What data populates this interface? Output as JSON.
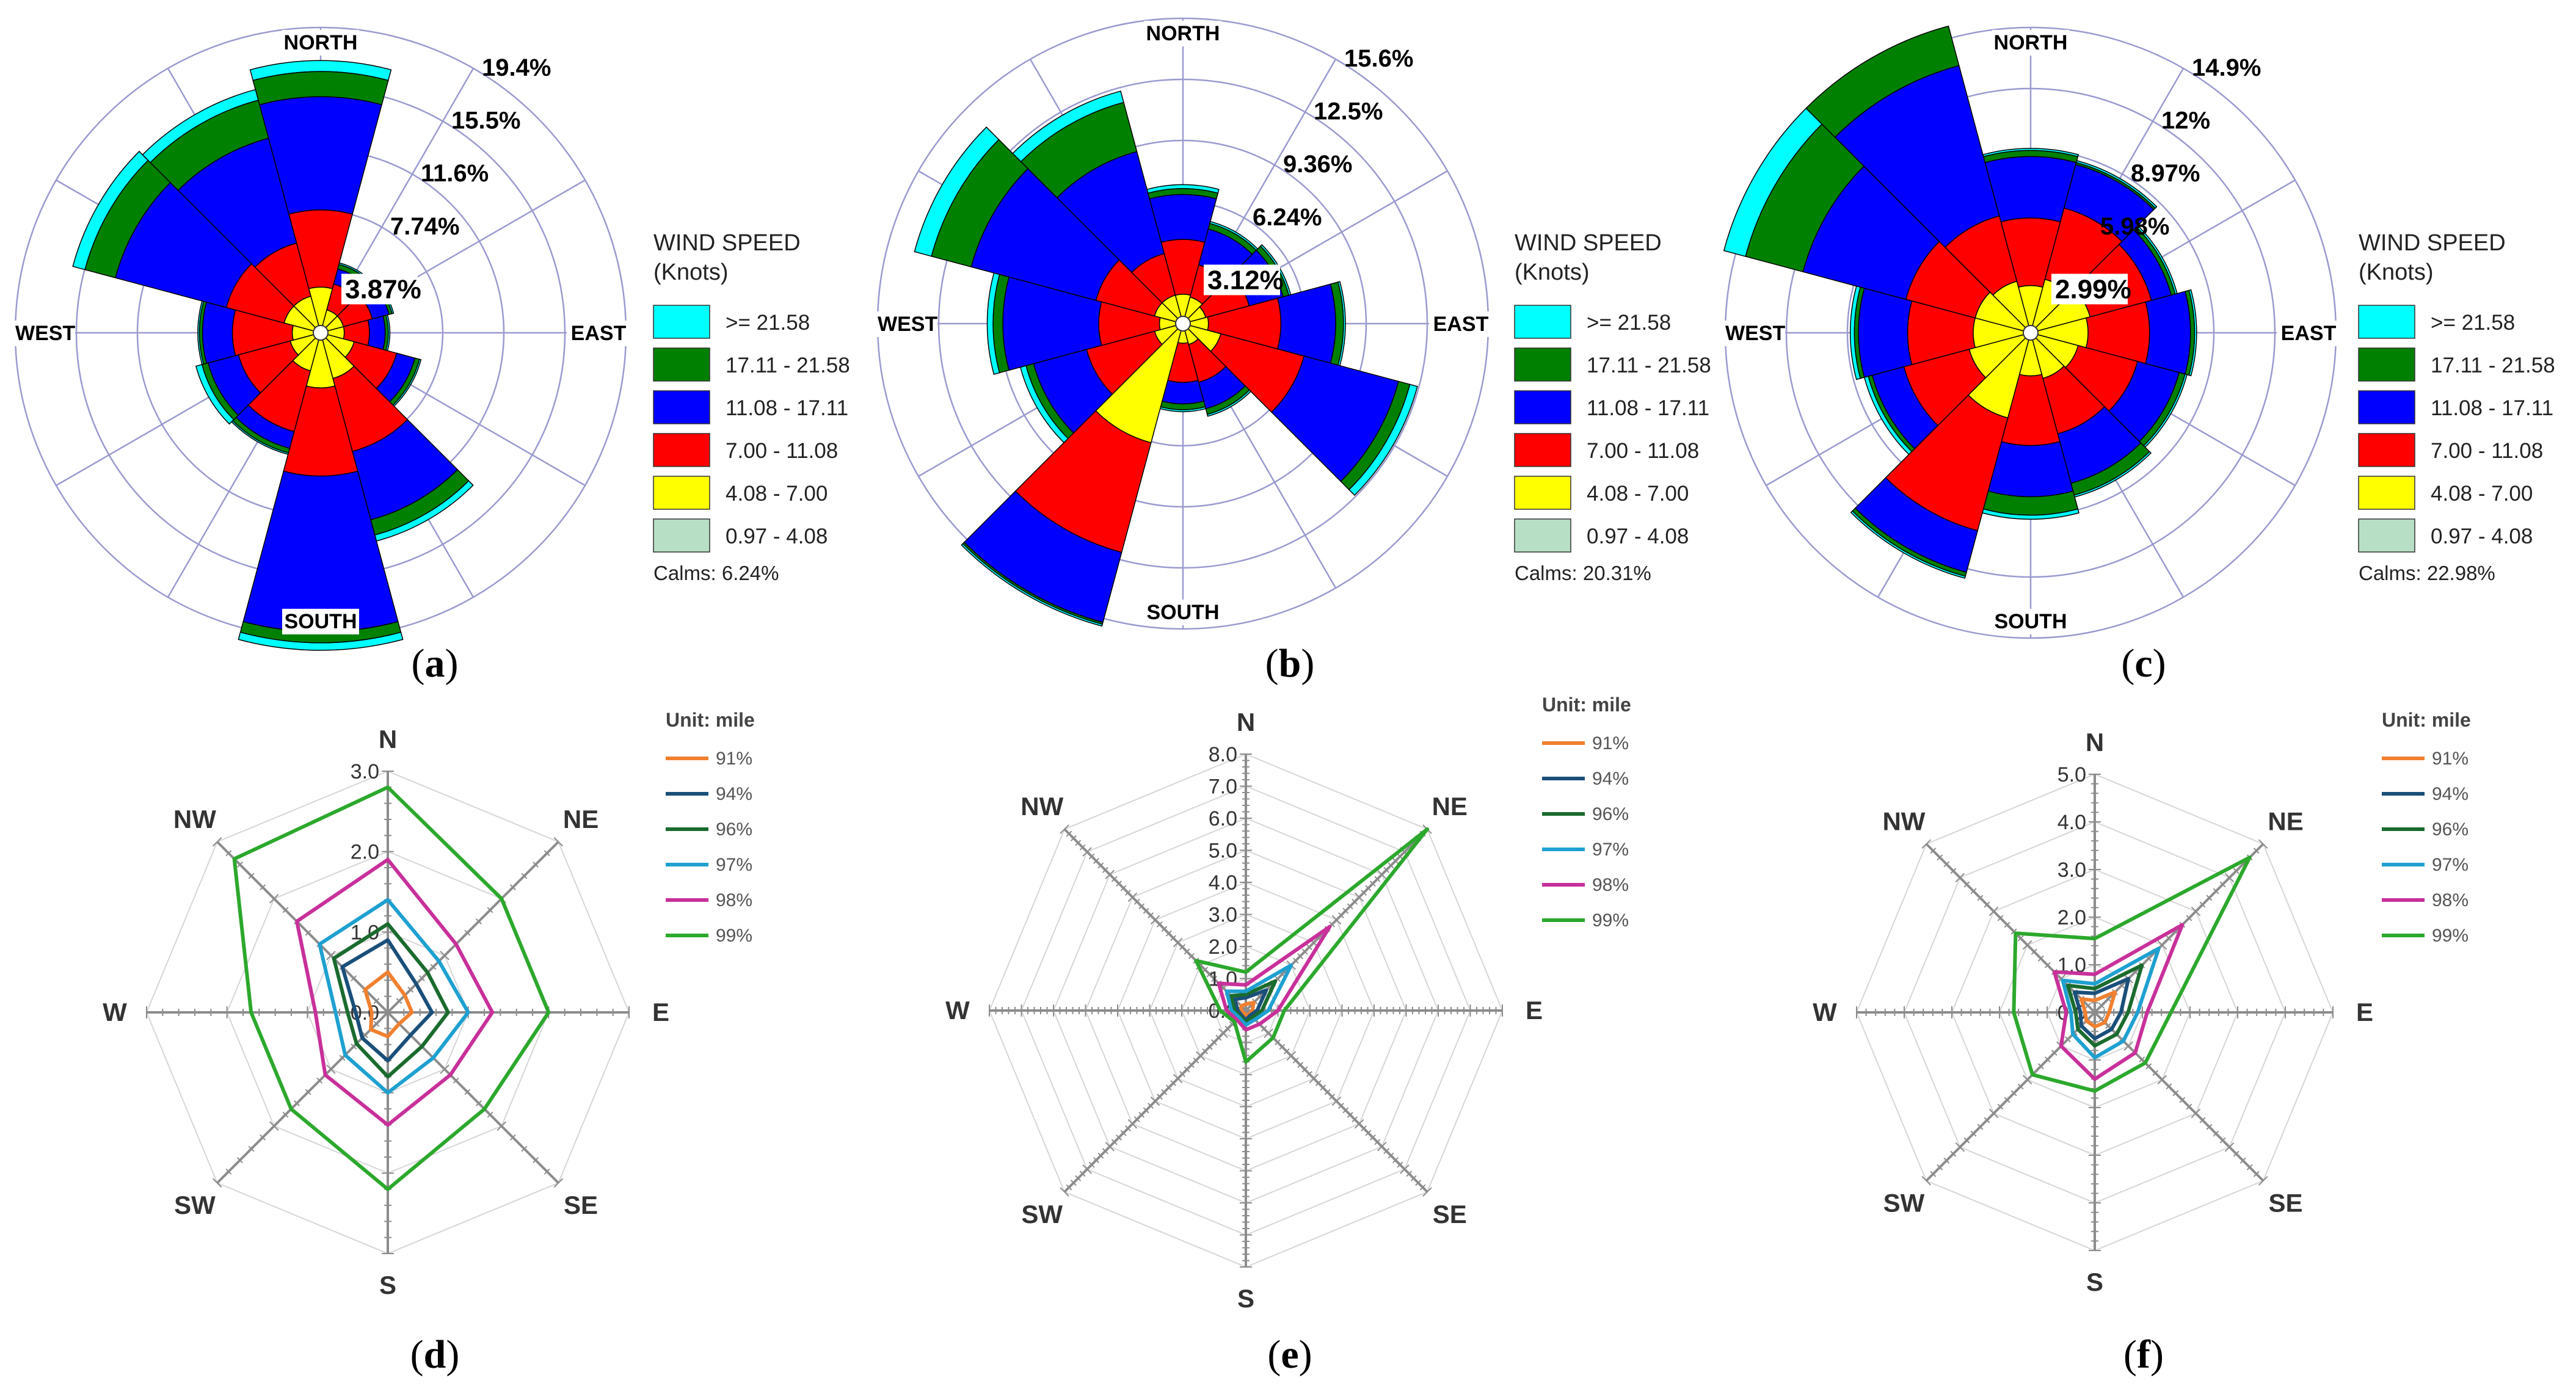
{
  "chart_data": [
    {
      "panel": "(a)",
      "type": "windrose",
      "directions": [
        "NORTH",
        "EAST",
        "SOUTH",
        "WEST"
      ],
      "ring_labels": [
        "3.87%",
        "7.74%",
        "11.6%",
        "15.5%",
        "19.4%"
      ],
      "rmax": 19.4,
      "legend_title": [
        "WIND SPEED",
        "(Knots)"
      ],
      "bins": [
        "0.97 - 4.08",
        "4.08 - 7.00",
        "7.00 - 11.08",
        "11.08 - 17.11",
        "17.11 - 21.58",
        ">= 21.58"
      ],
      "colors": [
        "#b7dfc6",
        "#ffff00",
        "#ff0000",
        "#0000ff",
        "#008000",
        "#00ffff"
      ],
      "legend_labels": [
        ">= 21.58",
        "17.11 - 21.58",
        "11.08 - 17.11",
        "7.00 - 11.08",
        "4.08 - 7.00",
        "0.97 - 4.08"
      ],
      "legend_colors": [
        "#00ffff",
        "#008000",
        "#0000ff",
        "#ff0000",
        "#ffff00",
        "#b7dfc6"
      ],
      "calms": "Calms: 6.24%",
      "sectors": [
        [
          0.1,
          2.9,
          7.8,
          15.0,
          16.6,
          17.3
        ],
        [
          0.1,
          1.5,
          3.2,
          4.2,
          4.5,
          4.6
        ],
        [
          0.1,
          1.5,
          3.4,
          4.5,
          4.7,
          4.8
        ],
        [
          0.1,
          1.5,
          3.1,
          4.1,
          4.3,
          4.4
        ],
        [
          0.1,
          2.2,
          5.0,
          6.2,
          6.5,
          6.6
        ],
        [
          0.1,
          3.0,
          7.8,
          12.3,
          13.3,
          13.7
        ],
        [
          0.1,
          3.5,
          9.1,
          19.0,
          19.7,
          20.3
        ],
        [
          0.1,
          2.5,
          6.5,
          7.6,
          7.9,
          8.0
        ],
        [
          0.1,
          2.0,
          5.4,
          7.4,
          7.8,
          8.2
        ],
        [
          0.1,
          1.8,
          5.6,
          7.5,
          7.7,
          7.8
        ],
        [
          0.1,
          2.4,
          6.2,
          13.5,
          15.5,
          16.3
        ],
        [
          0.1,
          2.4,
          5.9,
          12.8,
          15.3,
          16.0
        ]
      ]
    },
    {
      "panel": "(b)",
      "type": "windrose",
      "directions": [
        "NORTH",
        "EAST",
        "SOUTH",
        "WEST"
      ],
      "ring_labels": [
        "3.12%",
        "6.24%",
        "9.36%",
        "12.5%",
        "15.6%"
      ],
      "rmax": 15.6,
      "legend_title": [
        "WIND SPEED",
        "(Knots)"
      ],
      "bins": [
        "0.97 - 4.08",
        "4.08 - 7.00",
        "7.00 - 11.08",
        "11.08 - 17.11",
        "17.11 - 21.58",
        ">= 21.58"
      ],
      "colors": [
        "#b7dfc6",
        "#ffff00",
        "#ff0000",
        "#0000ff",
        "#008000",
        "#00ffff"
      ],
      "legend_labels": [
        ">= 21.58",
        "17.11 - 21.58",
        "11.08 - 17.11",
        "7.00 - 11.08",
        "4.08 - 7.00",
        "0.97 - 4.08"
      ],
      "legend_colors": [
        "#00ffff",
        "#008000",
        "#0000ff",
        "#ff0000",
        "#ffff00",
        "#b7dfc6"
      ],
      "calms": "Calms: 20.31%",
      "sectors": [
        [
          0.3,
          1.5,
          4.3,
          6.6,
          6.9,
          7.1
        ],
        [
          0.3,
          1.4,
          3.1,
          5.0,
          5.3,
          5.4
        ],
        [
          0.3,
          1.2,
          3.5,
          5.3,
          5.6,
          5.7
        ],
        [
          0.3,
          1.3,
          5.0,
          7.8,
          8.2,
          8.3
        ],
        [
          0.3,
          2.0,
          6.4,
          11.4,
          12.0,
          12.4
        ],
        [
          0.3,
          1.1,
          3.1,
          4.5,
          4.8,
          4.9
        ],
        [
          0.3,
          1.0,
          3.0,
          4.1,
          4.4,
          4.5
        ],
        [
          0.3,
          6.3,
          12.1,
          15.8,
          15.9,
          16.0
        ],
        [
          0.3,
          1.5,
          5.1,
          7.9,
          8.3,
          8.6
        ],
        [
          0.3,
          1.2,
          4.3,
          9.2,
          9.7,
          10.0
        ],
        [
          0.3,
          1.5,
          4.6,
          11.2,
          13.3,
          14.2
        ],
        [
          0.3,
          1.5,
          3.7,
          9.1,
          11.7,
          12.3
        ]
      ]
    },
    {
      "panel": "(c)",
      "type": "windrose",
      "directions": [
        "NORTH",
        "EAST",
        "SOUTH",
        "WEST"
      ],
      "ring_labels": [
        "2.99%",
        "5.98%",
        "8.97%",
        "12%",
        "14.9%"
      ],
      "rmax": 14.9,
      "legend_title": [
        "WIND SPEED",
        "(Knots)"
      ],
      "bins": [
        "0.97 - 4.08",
        "4.08 - 7.00",
        "7.00 - 11.08",
        "11.08 - 17.11",
        "17.11 - 21.58",
        ">= 21.58"
      ],
      "colors": [
        "#b7dfc6",
        "#ffff00",
        "#ff0000",
        "#0000ff",
        "#008000",
        "#00ffff"
      ],
      "legend_labels": [
        ">= 21.58",
        "17.11 - 21.58",
        "11.08 - 17.11",
        "7.00 - 11.08",
        "4.08 - 7.00",
        "0.97 - 4.08"
      ],
      "legend_colors": [
        "#00ffff",
        "#008000",
        "#0000ff",
        "#ff0000",
        "#ffff00",
        "#b7dfc6"
      ],
      "calms": "Calms: 22.98%",
      "sectors": [
        [
          0.3,
          2.3,
          5.6,
          8.6,
          8.9,
          9.0
        ],
        [
          0.3,
          2.7,
          6.3,
          8.5,
          8.6,
          8.7
        ],
        [
          0.3,
          3.0,
          6.1,
          7.1,
          7.3,
          7.4
        ],
        [
          0.3,
          2.8,
          5.8,
          7.8,
          8.0,
          8.1
        ],
        [
          0.3,
          2.4,
          5.4,
          7.5,
          7.8,
          7.9
        ],
        [
          0.3,
          2.3,
          5.1,
          7.6,
          8.2,
          8.3
        ],
        [
          0.3,
          2.1,
          5.5,
          8.0,
          8.9,
          9.1
        ],
        [
          0.3,
          4.3,
          10.0,
          12.1,
          12.3,
          12.4
        ],
        [
          0.3,
          3.1,
          6.4,
          8.0,
          8.2,
          8.4
        ],
        [
          0.3,
          2.8,
          6.0,
          8.4,
          8.6,
          8.8
        ],
        [
          0.3,
          2.8,
          6.3,
          11.5,
          14.4,
          16.4
        ],
        [
          0.3,
          2.6,
          5.9,
          13.5,
          15.5,
          16.3
        ]
      ]
    },
    {
      "panel": "(d)",
      "type": "radar",
      "axes": [
        "N",
        "NE",
        "E",
        "SE",
        "S",
        "SW",
        "W",
        "NW"
      ],
      "rmax": 3.0,
      "ticks": [
        "0.0",
        "1.0",
        "2.0",
        "3.0"
      ],
      "legend_title": "Unit: mile",
      "series": [
        {
          "name": "91%",
          "color": "#f08030",
          "values": [
            0.5,
            0.3,
            0.3,
            0.2,
            0.3,
            0.3,
            0.2,
            0.4
          ]
        },
        {
          "name": "94%",
          "color": "#1a4f7a",
          "values": [
            0.9,
            0.5,
            0.55,
            0.4,
            0.6,
            0.45,
            0.4,
            0.8
          ]
        },
        {
          "name": "96%",
          "color": "#1a6b2e",
          "values": [
            1.1,
            0.7,
            0.75,
            0.6,
            0.8,
            0.55,
            0.5,
            0.95
          ]
        },
        {
          "name": "97%",
          "color": "#1ea0d0",
          "values": [
            1.4,
            0.9,
            1.0,
            0.8,
            1.0,
            0.75,
            0.65,
            1.2
          ]
        },
        {
          "name": "98%",
          "color": "#c8309a",
          "values": [
            1.9,
            1.2,
            1.3,
            1.1,
            1.4,
            1.1,
            0.9,
            1.6
          ]
        },
        {
          "name": "99%",
          "color": "#2ca82c",
          "values": [
            2.8,
            2.0,
            2.0,
            1.7,
            2.2,
            1.7,
            1.7,
            2.7
          ]
        }
      ]
    },
    {
      "panel": "(e)",
      "type": "radar",
      "axes": [
        "N",
        "NE",
        "E",
        "SE",
        "S",
        "SW",
        "W",
        "NW"
      ],
      "rmax": 8.0,
      "ticks": [
        "0.0",
        "1.0",
        "2.0",
        "3.0",
        "4.0",
        "5.0",
        "6.0",
        "7.0",
        "8.0"
      ],
      "legend_title": "Unit: mile",
      "series": [
        {
          "name": "91%",
          "color": "#f08030",
          "values": [
            0.2,
            0.35,
            0.2,
            0.15,
            0.15,
            0.1,
            0.15,
            0.2
          ]
        },
        {
          "name": "94%",
          "color": "#1a4f7a",
          "values": [
            0.4,
            0.9,
            0.35,
            0.2,
            0.3,
            0.2,
            0.25,
            0.5
          ]
        },
        {
          "name": "96%",
          "color": "#1a6b2e",
          "values": [
            0.5,
            1.3,
            0.5,
            0.3,
            0.35,
            0.25,
            0.35,
            0.65
          ]
        },
        {
          "name": "97%",
          "color": "#1ea0d0",
          "values": [
            0.6,
            2.0,
            0.7,
            0.4,
            0.45,
            0.3,
            0.45,
            0.85
          ]
        },
        {
          "name": "98%",
          "color": "#c8309a",
          "values": [
            0.8,
            3.7,
            1.0,
            0.6,
            0.6,
            0.4,
            0.6,
            1.2
          ]
        },
        {
          "name": "99%",
          "color": "#2ca82c",
          "values": [
            1.2,
            8.0,
            1.2,
            1.2,
            1.6,
            0.5,
            0.8,
            2.2
          ]
        }
      ]
    },
    {
      "panel": "(f)",
      "type": "radar",
      "axes": [
        "N",
        "NE",
        "E",
        "SE",
        "S",
        "SW",
        "W",
        "NW"
      ],
      "rmax": 5.0,
      "ticks": [
        "0.0",
        "1.0",
        "2.0",
        "3.0",
        "4.0",
        "5.0"
      ],
      "legend_title": "Unit: mile",
      "series": [
        {
          "name": "91%",
          "color": "#f08030",
          "values": [
            0.25,
            0.6,
            0.3,
            0.3,
            0.3,
            0.25,
            0.2,
            0.4
          ]
        },
        {
          "name": "94%",
          "color": "#1a4f7a",
          "values": [
            0.4,
            1.0,
            0.55,
            0.5,
            0.55,
            0.4,
            0.3,
            0.6
          ]
        },
        {
          "name": "96%",
          "color": "#1a6b2e",
          "values": [
            0.5,
            1.4,
            0.7,
            0.65,
            0.7,
            0.5,
            0.4,
            0.8
          ]
        },
        {
          "name": "97%",
          "color": "#1ea0d0",
          "values": [
            0.6,
            1.9,
            0.9,
            0.85,
            0.95,
            0.65,
            0.5,
            0.95
          ]
        },
        {
          "name": "98%",
          "color": "#c8309a",
          "values": [
            0.8,
            2.6,
            1.1,
            1.2,
            1.4,
            1.0,
            0.6,
            1.2
          ]
        },
        {
          "name": "99%",
          "color": "#2ca82c",
          "values": [
            1.55,
            4.6,
            1.6,
            1.5,
            1.65,
            1.85,
            1.7,
            2.35
          ]
        }
      ]
    }
  ]
}
